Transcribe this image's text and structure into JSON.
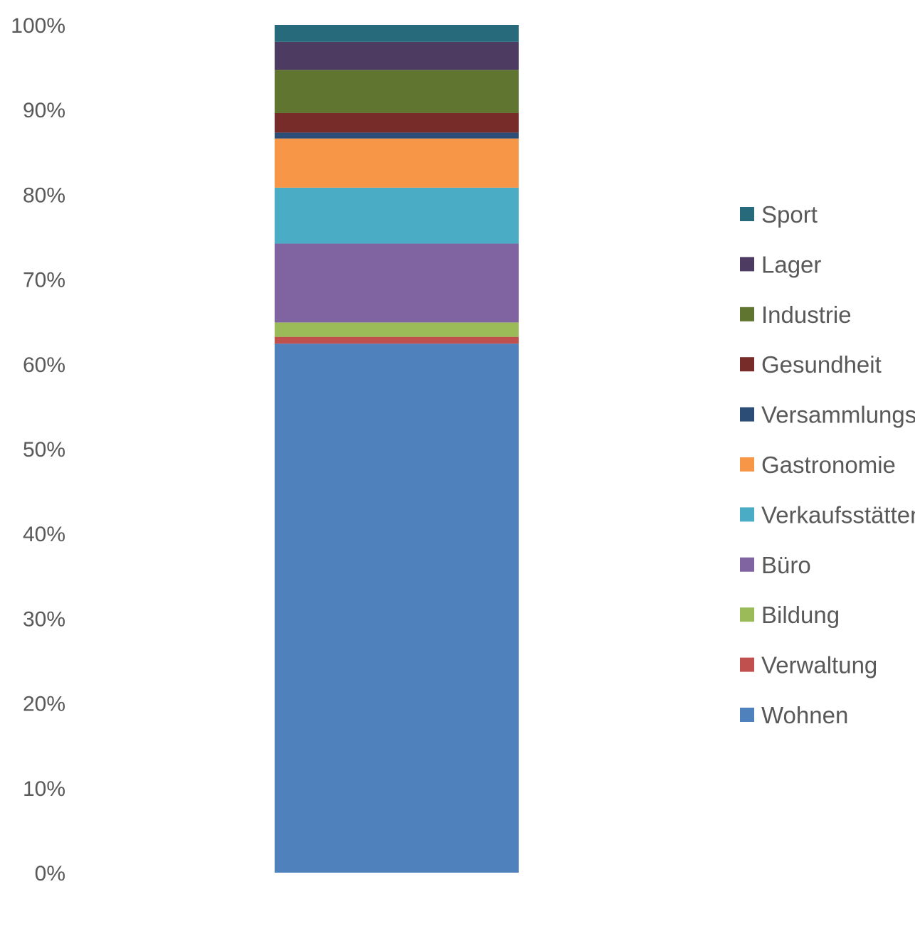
{
  "chart_data": {
    "type": "bar",
    "stacked": true,
    "normalized": true,
    "categories": [
      ""
    ],
    "ylim": [
      0,
      100
    ],
    "y_ticks": [
      "0%",
      "10%",
      "20%",
      "30%",
      "40%",
      "50%",
      "60%",
      "70%",
      "80%",
      "90%",
      "100%"
    ],
    "grid": false,
    "legend_position": "right",
    "series": [
      {
        "name": "Wohnen",
        "values": [
          62.4
        ],
        "color": "#4F81BD"
      },
      {
        "name": "Verwaltung",
        "values": [
          0.8
        ],
        "color": "#C0504D"
      },
      {
        "name": "Bildung",
        "values": [
          1.7
        ],
        "color": "#9BBB59"
      },
      {
        "name": "Büro",
        "values": [
          9.3
        ],
        "color": "#8064A2"
      },
      {
        "name": "Verkaufsstätten",
        "values": [
          6.6
        ],
        "color": "#4BACC6"
      },
      {
        "name": "Gastronomie",
        "values": [
          5.8
        ],
        "color": "#F79646"
      },
      {
        "name": "Versammlungsstätten",
        "values": [
          0.7
        ],
        "color": "#2C4D75"
      },
      {
        "name": "Gesundheit",
        "values": [
          2.3
        ],
        "color": "#772C2A"
      },
      {
        "name": "Industrie",
        "values": [
          5.1
        ],
        "color": "#5F7530"
      },
      {
        "name": "Lager",
        "values": [
          3.3
        ],
        "color": "#4D3B62"
      },
      {
        "name": "Sport",
        "values": [
          2.0
        ],
        "color": "#276A7C"
      }
    ]
  }
}
